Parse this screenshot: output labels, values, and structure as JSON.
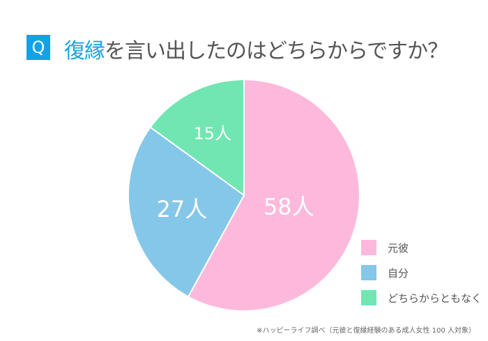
{
  "title": {
    "badge": "Q",
    "highlight": "復縁",
    "rest": "を言い出したのはどちらからですか？"
  },
  "chart_data": {
    "type": "pie",
    "categories": [
      "元彼",
      "自分",
      "どちらからともなく"
    ],
    "values": [
      58,
      27,
      15
    ],
    "unit": "人",
    "data_labels": [
      "58人",
      "27人",
      "15人"
    ],
    "colors": [
      "#fdb9dc",
      "#85c7e8",
      "#72e6b2"
    ],
    "start_angle": "top",
    "direction": "clockwise",
    "legend": "right-bottom"
  },
  "footnote": "※ハッピーライフ調べ（元彼と復縁経験のある成人女性 100 人対象）"
}
